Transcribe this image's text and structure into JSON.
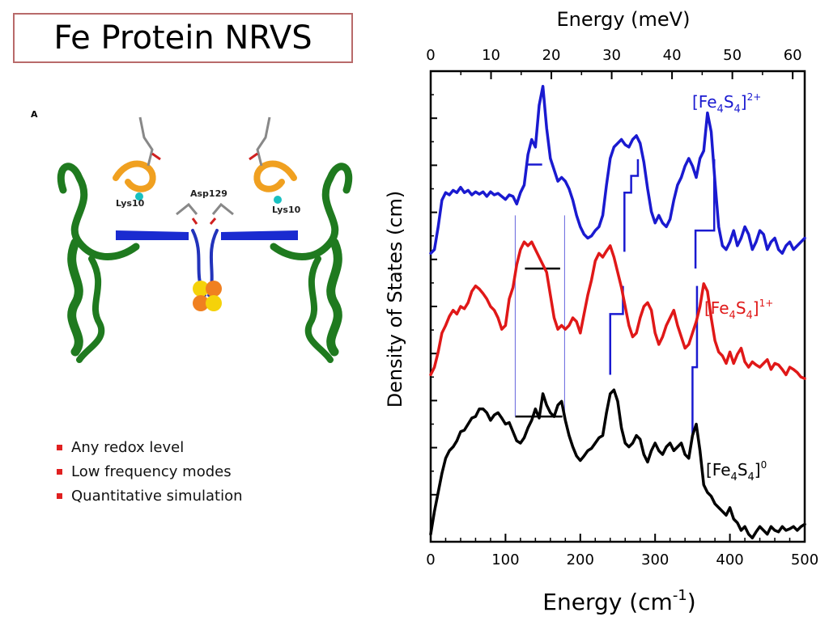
{
  "slide": {
    "title": "Fe Protein NRVS",
    "bullets": [
      "Any redox level",
      "Low frequency modes",
      "Quantitative simulation"
    ],
    "accent_bullet_color": "#e02020",
    "title_border_color": "#b86a6a"
  },
  "protein_figure": {
    "panel_label": "A",
    "labels": [
      "Lys10",
      "Asp129",
      "Lys10"
    ]
  },
  "chart_data": {
    "type": "line",
    "xlabel_bottom": "Energy (cm",
    "xlabel_bottom_sup": "-1",
    "xlabel_bottom_end": ")",
    "xlabel_top": "Energy (meV)",
    "ylabel": "Density of States (cm)",
    "xlim": [
      0,
      500
    ],
    "xticks_bottom": [
      0,
      100,
      200,
      300,
      400,
      500
    ],
    "xticks_top": [
      0,
      10,
      20,
      30,
      40,
      50,
      60
    ],
    "grid": false,
    "series": [
      {
        "name_base": "[Fe",
        "name_sub1": "4",
        "name_mid": "S",
        "name_sub2": "4",
        "name_end": "]",
        "name_sup": "2+",
        "color": "#1a1ad0",
        "x": [
          0,
          5,
          10,
          15,
          20,
          25,
          30,
          35,
          40,
          45,
          50,
          55,
          60,
          65,
          70,
          75,
          80,
          85,
          90,
          95,
          100,
          105,
          110,
          115,
          120,
          125,
          130,
          135,
          140,
          145,
          150,
          155,
          160,
          165,
          170,
          175,
          180,
          185,
          190,
          195,
          200,
          205,
          210,
          215,
          220,
          225,
          230,
          235,
          240,
          245,
          250,
          255,
          260,
          265,
          270,
          275,
          280,
          285,
          290,
          295,
          300,
          305,
          310,
          315,
          320,
          325,
          330,
          335,
          340,
          345,
          350,
          355,
          360,
          365,
          370,
          375,
          380,
          385,
          390,
          395,
          400,
          405,
          410,
          415,
          420,
          425,
          430,
          435,
          440,
          445,
          450,
          455,
          460,
          465,
          470,
          475,
          480,
          485,
          490,
          495,
          500
        ],
        "y": [
          2.05,
          2.1,
          2.4,
          2.75,
          2.85,
          2.82,
          2.88,
          2.85,
          2.92,
          2.85,
          2.88,
          2.82,
          2.86,
          2.83,
          2.86,
          2.8,
          2.86,
          2.82,
          2.84,
          2.8,
          2.76,
          2.82,
          2.8,
          2.7,
          2.85,
          2.95,
          3.35,
          3.55,
          3.45,
          4.0,
          4.25,
          3.7,
          3.3,
          3.15,
          3.0,
          3.05,
          3.0,
          2.9,
          2.75,
          2.55,
          2.4,
          2.3,
          2.25,
          2.28,
          2.35,
          2.4,
          2.55,
          2.95,
          3.3,
          3.45,
          3.5,
          3.55,
          3.48,
          3.45,
          3.55,
          3.6,
          3.5,
          3.25,
          2.9,
          2.6,
          2.45,
          2.55,
          2.45,
          2.4,
          2.5,
          2.75,
          2.95,
          3.05,
          3.2,
          3.3,
          3.2,
          3.05,
          3.3,
          3.4,
          3.9,
          3.65,
          3.0,
          2.4,
          2.15,
          2.1,
          2.2,
          2.35,
          2.15,
          2.25,
          2.4,
          2.3,
          2.1,
          2.2,
          2.35,
          2.3,
          2.1,
          2.2,
          2.25,
          2.1,
          2.05,
          2.15,
          2.2,
          2.1,
          2.15,
          2.2,
          2.25
        ]
      },
      {
        "name_base": "[Fe",
        "name_sub1": "4",
        "name_mid": "S",
        "name_sub2": "4",
        "name_end": "]",
        "name_sup": "1+",
        "color": "#e01818",
        "x": [
          0,
          5,
          10,
          15,
          20,
          25,
          30,
          35,
          40,
          45,
          50,
          55,
          60,
          65,
          70,
          75,
          80,
          85,
          90,
          95,
          100,
          105,
          110,
          115,
          120,
          125,
          130,
          135,
          140,
          145,
          150,
          155,
          160,
          165,
          170,
          175,
          180,
          185,
          190,
          195,
          200,
          205,
          210,
          215,
          220,
          225,
          230,
          235,
          240,
          245,
          250,
          255,
          260,
          265,
          270,
          275,
          280,
          285,
          290,
          295,
          300,
          305,
          310,
          315,
          320,
          325,
          330,
          335,
          340,
          345,
          350,
          355,
          360,
          365,
          370,
          375,
          380,
          385,
          390,
          395,
          400,
          405,
          410,
          415,
          420,
          425,
          430,
          435,
          440,
          445,
          450,
          455,
          460,
          465,
          470,
          475,
          480,
          485,
          490,
          495,
          500
        ],
        "y": [
          0.45,
          0.55,
          0.75,
          1.0,
          1.1,
          1.22,
          1.3,
          1.25,
          1.35,
          1.32,
          1.4,
          1.55,
          1.62,
          1.58,
          1.52,
          1.45,
          1.35,
          1.3,
          1.2,
          1.05,
          1.1,
          1.45,
          1.6,
          1.9,
          2.1,
          2.2,
          2.15,
          2.2,
          2.1,
          2.0,
          1.9,
          1.8,
          1.5,
          1.2,
          1.05,
          1.1,
          1.05,
          1.1,
          1.2,
          1.15,
          1.0,
          1.25,
          1.5,
          1.7,
          1.95,
          2.05,
          2.0,
          2.08,
          2.15,
          2.0,
          1.8,
          1.6,
          1.35,
          1.1,
          0.95,
          1.0,
          1.2,
          1.35,
          1.4,
          1.3,
          1.0,
          0.85,
          0.95,
          1.1,
          1.2,
          1.3,
          1.1,
          0.95,
          0.8,
          0.85,
          1.0,
          1.15,
          1.35,
          1.65,
          1.55,
          1.2,
          0.9,
          0.75,
          0.7,
          0.6,
          0.75,
          0.6,
          0.72,
          0.8,
          0.62,
          0.55,
          0.62,
          0.58,
          0.55,
          0.6,
          0.65,
          0.52,
          0.6,
          0.58,
          0.52,
          0.45,
          0.55,
          0.52,
          0.48,
          0.42,
          0.4
        ]
      },
      {
        "name_base": "[Fe",
        "name_sub1": "4",
        "name_mid": "S",
        "name_sub2": "4",
        "name_end": "]",
        "name_sup": "0",
        "color": "#000000",
        "x": [
          0,
          5,
          10,
          15,
          20,
          25,
          30,
          35,
          40,
          45,
          50,
          55,
          60,
          65,
          70,
          75,
          80,
          85,
          90,
          95,
          100,
          105,
          110,
          115,
          120,
          125,
          130,
          135,
          140,
          145,
          150,
          155,
          160,
          165,
          170,
          175,
          180,
          185,
          190,
          195,
          200,
          205,
          210,
          215,
          220,
          225,
          230,
          235,
          240,
          245,
          250,
          255,
          260,
          265,
          270,
          275,
          280,
          285,
          290,
          295,
          300,
          305,
          310,
          315,
          320,
          325,
          330,
          335,
          340,
          345,
          350,
          355,
          360,
          365,
          370,
          375,
          380,
          385,
          390,
          395,
          400,
          405,
          410,
          415,
          420,
          425,
          430,
          435,
          440,
          445,
          450,
          455,
          460,
          465,
          470,
          475,
          480,
          485,
          490,
          495,
          500
        ],
        "y": [
          -1.65,
          -1.35,
          -1.1,
          -0.85,
          -0.65,
          -0.55,
          -0.5,
          -0.42,
          -0.3,
          -0.28,
          -0.2,
          -0.12,
          -0.1,
          0.0,
          0.0,
          -0.05,
          -0.15,
          -0.08,
          -0.05,
          -0.12,
          -0.2,
          -0.18,
          -0.3,
          -0.42,
          -0.45,
          -0.38,
          -0.25,
          -0.15,
          0.0,
          -0.12,
          0.2,
          0.05,
          -0.05,
          -0.1,
          0.05,
          0.1,
          -0.15,
          -0.35,
          -0.5,
          -0.62,
          -0.68,
          -0.62,
          -0.55,
          -0.52,
          -0.45,
          -0.38,
          -0.35,
          -0.05,
          0.2,
          0.25,
          0.1,
          -0.25,
          -0.45,
          -0.5,
          -0.45,
          -0.35,
          -0.4,
          -0.6,
          -0.7,
          -0.55,
          -0.45,
          -0.55,
          -0.6,
          -0.5,
          -0.45,
          -0.55,
          -0.5,
          -0.45,
          -0.6,
          -0.65,
          -0.35,
          -0.2,
          -0.55,
          -1.0,
          -1.1,
          -1.15,
          -1.25,
          -1.3,
          -1.35,
          -1.4,
          -1.3,
          -1.45,
          -1.5,
          -1.6,
          -1.55,
          -1.65,
          -1.7,
          -1.62,
          -1.55,
          -1.6,
          -1.65,
          -1.55,
          -1.6,
          -1.62,
          -1.55,
          -1.6,
          -1.58,
          -1.55,
          -1.6,
          -1.55,
          -1.52
        ]
      }
    ],
    "step_marks": [
      {
        "color": "#1a1ad0",
        "segments": [
          [
            [
              129,
              3.22
            ],
            [
              149,
              3.22
            ]
          ],
          [
            [
              259,
              2.07
            ],
            [
              259,
              2.85
            ],
            [
              268,
              2.85
            ],
            [
              268,
              3.07
            ],
            [
              277,
              3.07
            ],
            [
              277,
              3.29
            ]
          ],
          [
            [
              354,
              1.85
            ],
            [
              354,
              2.35
            ],
            [
              366,
              2.35
            ],
            [
              366,
              2.35
            ],
            [
              379,
              2.35
            ],
            [
              379,
              3.29
            ]
          ]
        ]
      },
      {
        "color": "#1a1ad0",
        "segments": [
          [
            [
              240,
              0.45
            ],
            [
              240,
              1.25
            ],
            [
              257,
              1.25
            ],
            [
              257,
              1.62
            ]
          ],
          [
            [
              350,
              -0.35
            ],
            [
              350,
              0.55
            ],
            [
              356,
              0.55
            ],
            [
              356,
              1.62
            ]
          ]
        ]
      },
      {
        "color": "#000000",
        "segments": [
          [
            [
              126,
              1.85
            ],
            [
              173,
              1.85
            ]
          ],
          [
            [
              113,
              -0.1
            ],
            [
              176,
              -0.1
            ]
          ]
        ]
      },
      {
        "color": "#6666dd",
        "segments": [
          [
            [
              113,
              -0.1
            ],
            [
              113,
              2.55
            ]
          ],
          [
            [
              179,
              -0.1
            ],
            [
              179,
              2.55
            ]
          ]
        ]
      }
    ]
  }
}
